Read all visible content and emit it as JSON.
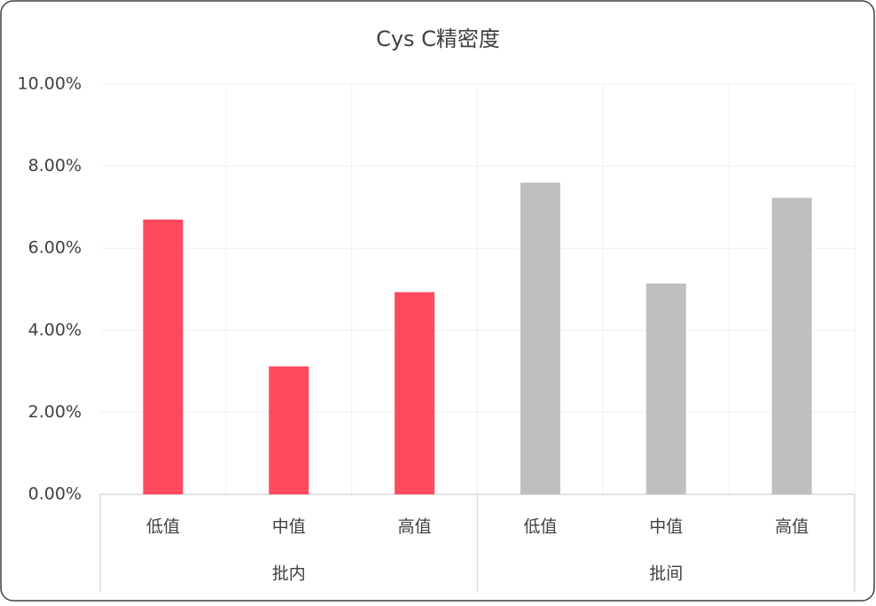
{
  "chart_data": {
    "type": "bar",
    "title": "Cys C精密度",
    "groups": [
      {
        "name": "批内",
        "color": "#ff4a5e",
        "categories": [
          "低值",
          "中值",
          "高值"
        ],
        "values": [
          6.7,
          3.12,
          4.93
        ]
      },
      {
        "name": "批间",
        "color": "#bfbfbf",
        "categories": [
          "低值",
          "中值",
          "高值"
        ],
        "values": [
          7.6,
          5.14,
          7.23
        ]
      }
    ],
    "ylim": [
      0,
      10
    ],
    "yticks": [
      {
        "value": 0,
        "label": "0.00%"
      },
      {
        "value": 2,
        "label": "2.00%"
      },
      {
        "value": 4,
        "label": "4.00%"
      },
      {
        "value": 6,
        "label": "6.00%"
      },
      {
        "value": 8,
        "label": "8.00%"
      },
      {
        "value": 10,
        "label": "10.00%"
      }
    ],
    "grid": true
  }
}
